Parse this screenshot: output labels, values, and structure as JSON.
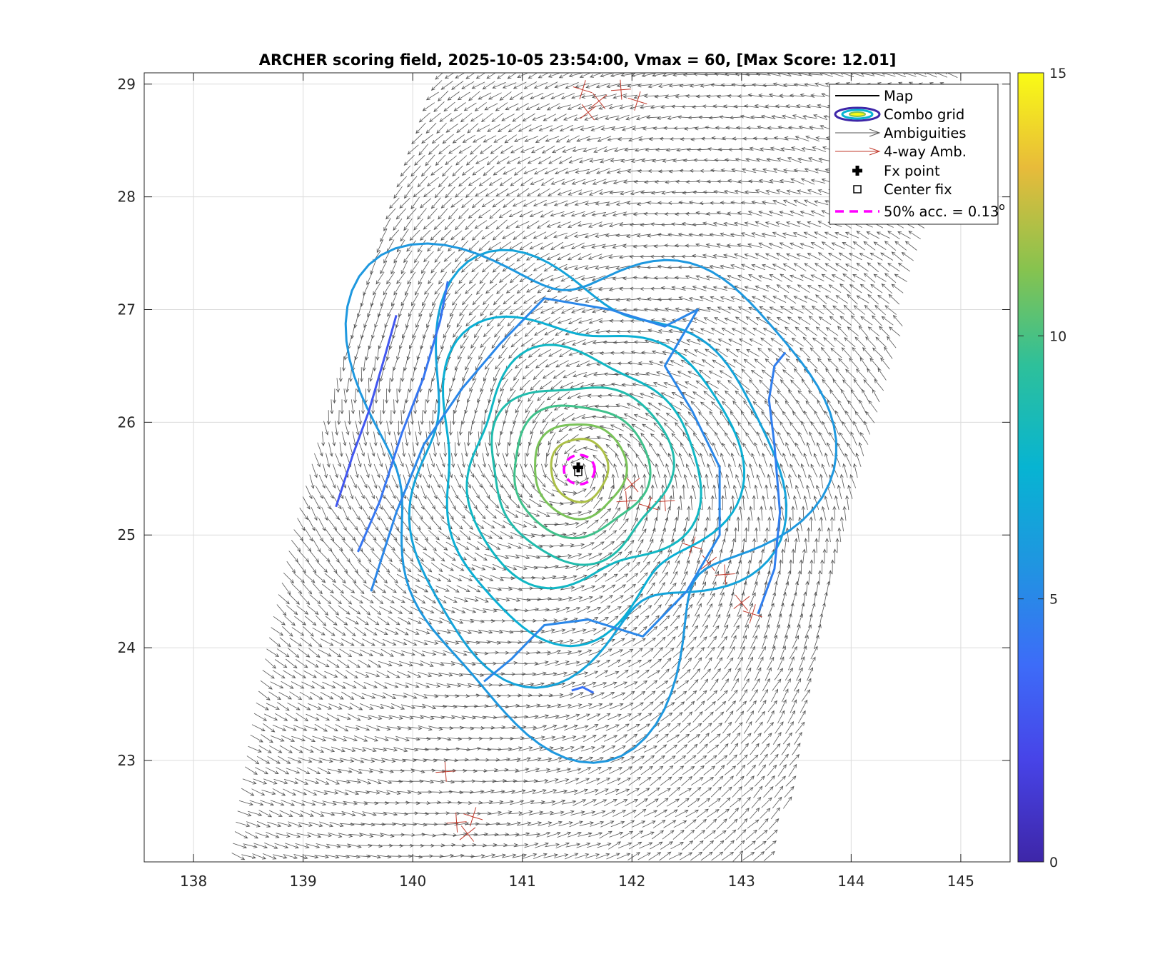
{
  "chart_data": {
    "type": "contour",
    "title": "ARCHER scoring field, 2025-10-05 23:54:00, Vmax = 60, [Max Score: 12.01]",
    "xlabel": "",
    "ylabel": "",
    "xlim": [
      137.55,
      145.45
    ],
    "ylim": [
      22.1,
      29.1
    ],
    "xticks": [
      138,
      139,
      140,
      141,
      142,
      143,
      144,
      145
    ],
    "yticks": [
      23,
      24,
      25,
      26,
      27,
      28,
      29
    ],
    "grid": true,
    "colorbar": {
      "min": 0,
      "max": 15,
      "ticks": [
        0,
        5,
        10,
        15
      ],
      "colormap": "parula"
    },
    "max_score": 12.01,
    "center": {
      "lon": 141.52,
      "lat": 25.58
    },
    "fx_point": {
      "lon": 141.51,
      "lat": 25.6
    },
    "center_fix": {
      "lon": 141.51,
      "lat": 25.56
    },
    "accuracy_50pct_deg": 0.13,
    "contour_levels": [
      5.0,
      5.8,
      6.5,
      7.2,
      8.0,
      8.8,
      9.8,
      11.0,
      12.0
    ],
    "ambiguity_field": {
      "type": "cyclonic",
      "center_lon": 141.52,
      "center_lat": 25.58,
      "swath_bounds": "curved west/east edges"
    },
    "legend": {
      "position": "top-right",
      "entries": [
        {
          "label": "Map",
          "style": "line"
        },
        {
          "label": "Combo grid",
          "style": "ellipse"
        },
        {
          "label": "Ambiguities",
          "style": "arrow-gray"
        },
        {
          "label": "4-way Amb.",
          "style": "arrow-red"
        },
        {
          "label": "Fx point",
          "style": "plus"
        },
        {
          "label": "Center fix",
          "style": "square"
        },
        {
          "label": "50% acc. = 0.13",
          "superscript": "o",
          "style": "dashed-magenta"
        }
      ]
    }
  }
}
